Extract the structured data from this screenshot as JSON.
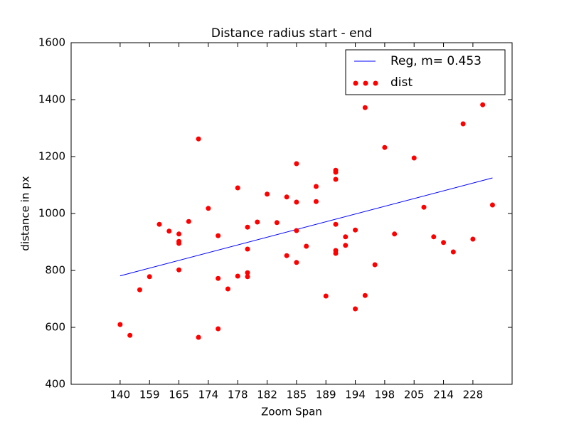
{
  "chart_data": {
    "type": "scatter",
    "title": "Distance radius start - end",
    "x_label": "Zoom Span",
    "y_label": "distance in px",
    "xlim": [
      -5,
      40
    ],
    "ylim": [
      400,
      1600
    ],
    "xticks": [
      {
        "value": 0,
        "label": "140"
      },
      {
        "value": 3,
        "label": "159"
      },
      {
        "value": 6,
        "label": "165"
      },
      {
        "value": 9,
        "label": "174"
      },
      {
        "value": 12,
        "label": "178"
      },
      {
        "value": 15,
        "label": "182"
      },
      {
        "value": 18,
        "label": "185"
      },
      {
        "value": 21,
        "label": "189"
      },
      {
        "value": 24,
        "label": "194"
      },
      {
        "value": 27,
        "label": "198"
      },
      {
        "value": 30,
        "label": "205"
      },
      {
        "value": 33,
        "label": "214"
      },
      {
        "value": 36,
        "label": "228"
      }
    ],
    "yticks": [
      400,
      600,
      800,
      1000,
      1200,
      1400,
      1600
    ],
    "grid": false,
    "legend": "upper right",
    "series": [
      {
        "name": "Reg, m= 0.453",
        "type": "line",
        "color": "#0000ff",
        "x": [
          0,
          38
        ],
        "values": [
          781,
          1125
        ]
      },
      {
        "name": "dist",
        "type": "scatter",
        "color": "#ff0000",
        "x": [
          0,
          1,
          2,
          3,
          4,
          5,
          6,
          6,
          6,
          6,
          7,
          8,
          8,
          9,
          10,
          10,
          10,
          11,
          12,
          12,
          13,
          13,
          13,
          13,
          14,
          15,
          16,
          17,
          17,
          18,
          18,
          18,
          18,
          19,
          20,
          20,
          21,
          22,
          22,
          22,
          22,
          22,
          22,
          23,
          23,
          24,
          24,
          25,
          25,
          26,
          27,
          28,
          30,
          31,
          32,
          33,
          34,
          35,
          36,
          37,
          38
        ],
        "values": [
          610,
          572,
          732,
          778,
          962,
          938,
          928,
          902,
          895,
          802,
          972,
          1262,
          565,
          1018,
          922,
          772,
          595,
          735,
          1090,
          780,
          952,
          875,
          792,
          778,
          970,
          1068,
          968,
          1058,
          852,
          1175,
          1040,
          940,
          828,
          885,
          1095,
          1042,
          710,
          1152,
          1145,
          1120,
          962,
          870,
          860,
          918,
          888,
          942,
          665,
          1372,
          712,
          820,
          1232,
          928,
          1195,
          1022,
          918,
          898,
          865,
          1315,
          910,
          1382,
          1030
        ]
      }
    ]
  }
}
